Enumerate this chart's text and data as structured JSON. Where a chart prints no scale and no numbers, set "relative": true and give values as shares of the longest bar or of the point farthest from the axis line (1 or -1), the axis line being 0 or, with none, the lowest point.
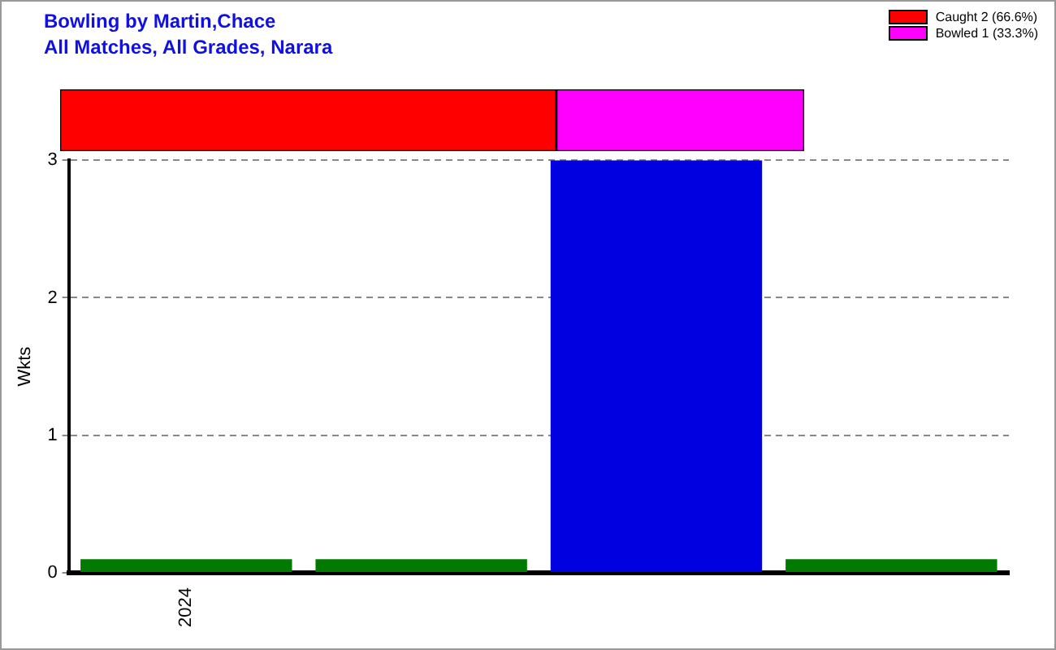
{
  "chart_data": [
    {
      "type": "bar",
      "title": "Bowling by Martin,Chace",
      "subtitle": "All Matches, All Grades, Narara",
      "orientation": "horizontal",
      "stacked": true,
      "relative": true,
      "legend": "top right",
      "categories": [
        null
      ],
      "series": [
        {
          "name": "Caught 2 (66.6%)",
          "color": "#ff0000",
          "values": [
            0.667
          ]
        },
        {
          "name": "Bowled 1 (33.3%)",
          "color": "#ff00ff",
          "values": [
            0.333
          ]
        }
      ]
    },
    {
      "type": "bar",
      "ylabel": "Wkts",
      "categories": [
        "2024",
        null,
        null,
        null
      ],
      "values": [
        0.1,
        0.1,
        3,
        0.1
      ],
      "colors": [
        "#007a00",
        "#007a00",
        "#0000e0",
        "#007a00"
      ],
      "ylim": [
        0,
        3
      ],
      "yticks": [
        0,
        1,
        2,
        3
      ],
      "grid": "y",
      "legend": false
    }
  ]
}
